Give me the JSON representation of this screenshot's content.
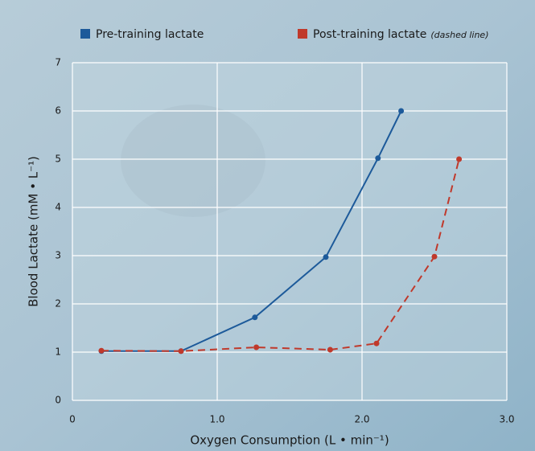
{
  "chart_data": {
    "type": "line",
    "xlabel": "Oxygen Consumption (L • min⁻¹)",
    "ylabel": "Blood Lactate (mM • L⁻¹)",
    "legend_note": "(dashed line)",
    "xlim": [
      0,
      3
    ],
    "ylim": [
      0,
      7
    ],
    "xticks": [
      0,
      {
        "value": 1,
        "label": "1.0"
      },
      {
        "value": 2,
        "label": "2.0"
      },
      {
        "value": 3,
        "label": "3.0"
      }
    ],
    "yticks": [
      0,
      1,
      2,
      3,
      4,
      5,
      6,
      7
    ],
    "grid": true,
    "series": [
      {
        "name": "Pre-training lactate",
        "color": "#1d5a9a",
        "line_style": "solid",
        "x": [
          0.2,
          0.75,
          1.26,
          1.75,
          2.11,
          2.27
        ],
        "values": [
          1.02,
          1.02,
          1.72,
          2.97,
          5.02,
          6.0
        ]
      },
      {
        "name": "Post-training lactate",
        "color": "#c0392b",
        "line_style": "dashed",
        "x": [
          0.2,
          0.75,
          1.27,
          1.78,
          2.1,
          2.5,
          2.67
        ],
        "values": [
          1.03,
          1.02,
          1.1,
          1.05,
          1.18,
          2.98,
          5.0
        ]
      }
    ]
  }
}
